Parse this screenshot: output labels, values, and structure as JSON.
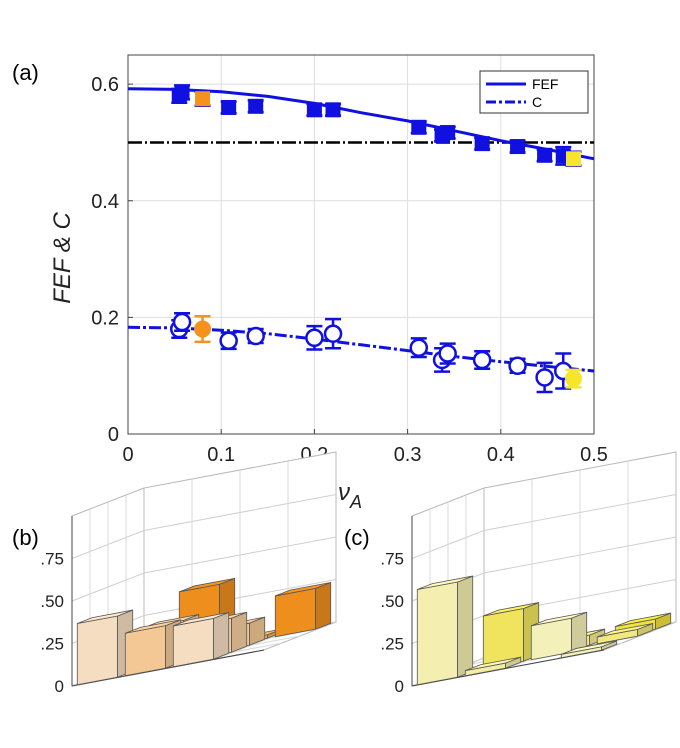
{
  "panels": {
    "a": "(a)",
    "b": "(b)",
    "c": "(c)"
  },
  "chart_data": [
    {
      "type": "scatter",
      "panel": "(a)",
      "xlabel": "ν_A",
      "xlabel_main": "ν",
      "xlabel_sub": "A",
      "ylabel": "FEF & C",
      "xlim": [
        0,
        0.5
      ],
      "ylim": [
        0,
        0.65
      ],
      "xticks": [
        0,
        0.1,
        0.2,
        0.3,
        0.4,
        0.5
      ],
      "xtick_labels": [
        "0",
        "0.1",
        "0.2",
        "0.3",
        "0.4",
        "0.5"
      ],
      "yticks": [
        0,
        0.2,
        0.4,
        0.6
      ],
      "ytick_labels": [
        "0",
        "0.2",
        "0.4",
        "0.6"
      ],
      "grid": true,
      "legend_position": "top-right",
      "legend": [
        "FEF",
        "C"
      ],
      "reference_line_y": 0.5,
      "fef_curve": [
        [
          0,
          0.592
        ],
        [
          0.05,
          0.591
        ],
        [
          0.1,
          0.587
        ],
        [
          0.15,
          0.579
        ],
        [
          0.2,
          0.567
        ],
        [
          0.25,
          0.551
        ],
        [
          0.3,
          0.537
        ],
        [
          0.35,
          0.52
        ],
        [
          0.4,
          0.503
        ],
        [
          0.45,
          0.488
        ],
        [
          0.5,
          0.472
        ]
      ],
      "c_curve": [
        [
          0,
          0.183
        ],
        [
          0.05,
          0.182
        ],
        [
          0.1,
          0.178
        ],
        [
          0.15,
          0.172
        ],
        [
          0.2,
          0.163
        ],
        [
          0.25,
          0.153
        ],
        [
          0.3,
          0.143
        ],
        [
          0.35,
          0.133
        ],
        [
          0.4,
          0.124
        ],
        [
          0.45,
          0.116
        ],
        [
          0.5,
          0.108
        ]
      ],
      "fef_points": [
        {
          "x": 0.055,
          "y": 0.58,
          "err": 0.012
        },
        {
          "x": 0.058,
          "y": 0.586,
          "err": 0.012
        },
        {
          "x": 0.08,
          "y": 0.575,
          "err": 0.012,
          "color": "#f5921e"
        },
        {
          "x": 0.108,
          "y": 0.56,
          "err": 0.01
        },
        {
          "x": 0.137,
          "y": 0.562,
          "err": 0.01
        },
        {
          "x": 0.2,
          "y": 0.556,
          "err": 0.01
        },
        {
          "x": 0.22,
          "y": 0.556,
          "err": 0.01
        },
        {
          "x": 0.312,
          "y": 0.526,
          "err": 0.01
        },
        {
          "x": 0.337,
          "y": 0.512,
          "err": 0.01
        },
        {
          "x": 0.343,
          "y": 0.517,
          "err": 0.01
        },
        {
          "x": 0.38,
          "y": 0.498,
          "err": 0.01
        },
        {
          "x": 0.418,
          "y": 0.493,
          "err": 0.01
        },
        {
          "x": 0.447,
          "y": 0.478,
          "err": 0.01
        },
        {
          "x": 0.467,
          "y": 0.477,
          "err": 0.015
        },
        {
          "x": 0.478,
          "y": 0.472,
          "err": 0.012,
          "color": "#f5e52c"
        }
      ],
      "c_points": [
        {
          "x": 0.055,
          "y": 0.18,
          "err": 0.015
        },
        {
          "x": 0.058,
          "y": 0.192,
          "err": 0.015
        },
        {
          "x": 0.08,
          "y": 0.18,
          "err": 0.022,
          "color": "#f5921e"
        },
        {
          "x": 0.108,
          "y": 0.16,
          "err": 0.014
        },
        {
          "x": 0.137,
          "y": 0.168,
          "err": 0.012
        },
        {
          "x": 0.2,
          "y": 0.165,
          "err": 0.02
        },
        {
          "x": 0.22,
          "y": 0.172,
          "err": 0.025
        },
        {
          "x": 0.312,
          "y": 0.148,
          "err": 0.016
        },
        {
          "x": 0.337,
          "y": 0.127,
          "err": 0.02
        },
        {
          "x": 0.343,
          "y": 0.138,
          "err": 0.017
        },
        {
          "x": 0.38,
          "y": 0.127,
          "err": 0.015
        },
        {
          "x": 0.418,
          "y": 0.117,
          "err": 0.012
        },
        {
          "x": 0.447,
          "y": 0.097,
          "err": 0.025
        },
        {
          "x": 0.467,
          "y": 0.108,
          "err": 0.03
        },
        {
          "x": 0.478,
          "y": 0.095,
          "err": 0.015,
          "color": "#f5e52c"
        }
      ],
      "colors": {
        "series": "#1010e0",
        "reference": "#000000",
        "highlight_b": "#f5921e",
        "highlight_c": "#f5e52c"
      }
    },
    {
      "type": "bar3d",
      "panel": "(b)",
      "zlim": [
        0,
        1
      ],
      "zticks": [
        0,
        0.25,
        0.5,
        0.75
      ],
      "ztick_labels": [
        "0",
        ".25",
        ".50",
        ".75"
      ],
      "grid_size": 4,
      "base_color": "#f5921e",
      "bars": [
        {
          "row": 0,
          "col": 0,
          "value": 0.36,
          "shade": 0.25
        },
        {
          "row": 2,
          "col": 0,
          "value": 0.0,
          "shade": 0.4
        },
        {
          "row": 0,
          "col": 1,
          "value": 0.25,
          "shade": 0.45
        },
        {
          "row": 1,
          "col": 1,
          "value": 0.24,
          "shade": 0.4
        },
        {
          "row": 3,
          "col": 1,
          "value": 0.37,
          "shade": 1.0
        },
        {
          "row": 0,
          "col": 2,
          "value": 0.24,
          "shade": 0.25
        },
        {
          "row": 1,
          "col": 2,
          "value": 0.2,
          "shade": 0.4
        },
        {
          "row": 2,
          "col": 2,
          "value": 0.13,
          "shade": 0.45
        },
        {
          "row": 3,
          "col": 2,
          "value": 0.02,
          "shade": 0.7
        },
        {
          "row": 3,
          "col": 3,
          "value": 0.24,
          "shade": 1.0
        }
      ]
    },
    {
      "type": "bar3d",
      "panel": "(c)",
      "zlim": [
        0,
        1
      ],
      "zticks": [
        0,
        0.25,
        0.5,
        0.75
      ],
      "ztick_labels": [
        "0",
        ".25",
        ".50",
        ".75"
      ],
      "grid_size": 4,
      "base_color": "#f5e52c",
      "bars": [
        {
          "row": 0,
          "col": 0,
          "value": 0.56,
          "shade": 0.35
        },
        {
          "row": 0,
          "col": 1,
          "value": 0.03,
          "shade": 0.4
        },
        {
          "row": 1,
          "col": 1,
          "value": 0.31,
          "shade": 0.75
        },
        {
          "row": 2,
          "col": 1,
          "value": 0.14,
          "shade": 0.7
        },
        {
          "row": 3,
          "col": 1,
          "value": 0.08,
          "shade": 0.5
        },
        {
          "row": 1,
          "col": 2,
          "value": 0.2,
          "shade": 0.3
        },
        {
          "row": 2,
          "col": 2,
          "value": 0.06,
          "shade": 0.5
        },
        {
          "row": 0,
          "col": 3,
          "value": 0.02,
          "shade": 0.3
        },
        {
          "row": 2,
          "col": 3,
          "value": 0.04,
          "shade": 0.6
        },
        {
          "row": 3,
          "col": 3,
          "value": 0.06,
          "shade": 0.9
        }
      ]
    }
  ]
}
